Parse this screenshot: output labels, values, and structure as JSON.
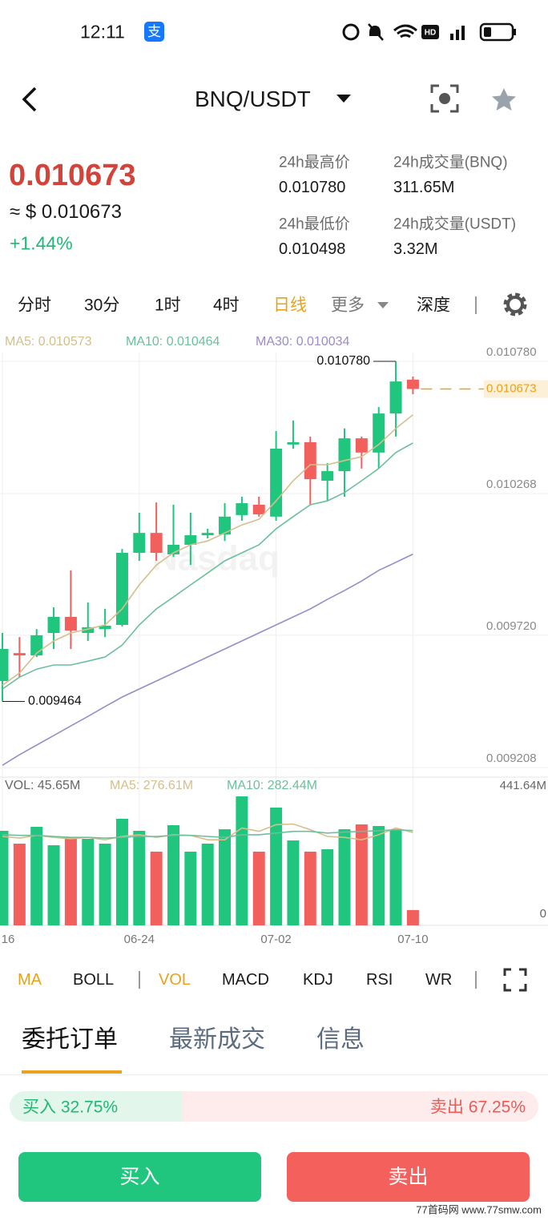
{
  "status_bar": {
    "time": "12:11",
    "app_badge": "支"
  },
  "header": {
    "title": "BNQ/USDT"
  },
  "ticker": {
    "price": "0.010673",
    "usd_price": "≈ $ 0.010673",
    "change": "+1.44%"
  },
  "stats": [
    {
      "label": "24h最高价",
      "value": "0.010780"
    },
    {
      "label": "24h成交量(BNQ)",
      "value": "311.65M"
    },
    {
      "label": "24h最低价",
      "value": "0.010498"
    },
    {
      "label": "24h成交量(USDT)",
      "value": "3.32M"
    }
  ],
  "intervals": {
    "items": [
      "分时",
      "30分",
      "1时",
      "4时",
      "日线",
      "更多",
      "深度"
    ],
    "active": 4
  },
  "chart_data": [
    {
      "type": "candlestick",
      "watermark": "Nasdaq",
      "categories": [
        "16",
        null,
        null,
        null,
        null,
        null,
        null,
        null,
        "06-24",
        null,
        null,
        null,
        null,
        null,
        null,
        null,
        "07-02",
        null,
        null,
        null,
        null,
        null,
        null,
        null,
        "07-10"
      ],
      "open": [
        0.009543,
        0.009651,
        0.009642,
        0.009729,
        0.009791,
        0.009729,
        0.009744,
        0.00976,
        0.010039,
        0.010116,
        0.010033,
        0.01007,
        0.010107,
        0.01011,
        0.010185,
        0.010225,
        0.010179,
        0.010458,
        0.010467,
        0.010318,
        0.010355,
        0.010482,
        0.010427,
        0.010578,
        0.010709
      ],
      "high": [
        0.009729,
        0.009713,
        0.009744,
        0.009828,
        0.009971,
        0.009847,
        0.009822,
        0.010054,
        0.010194,
        0.010234,
        0.010225,
        0.010194,
        0.010132,
        0.010231,
        0.010256,
        0.010256,
        0.01051,
        0.010551,
        0.010489,
        0.010386,
        0.01052,
        0.010489,
        0.010603,
        0.01078,
        0.010721
      ],
      "low": [
        0.009464,
        0.009558,
        0.009636,
        0.009667,
        0.009667,
        0.009698,
        0.009713,
        0.009754,
        0.010008,
        0.010008,
        0.010023,
        0.009992,
        0.010095,
        0.010085,
        0.010163,
        0.010179,
        0.010163,
        0.010442,
        0.010225,
        0.01024,
        0.010256,
        0.010365,
        0.010365,
        0.010489,
        0.010653
      ],
      "close": [
        0.009667,
        0.009642,
        0.00972,
        0.009791,
        0.009738,
        0.009751,
        0.009757,
        0.010039,
        0.010116,
        0.010039,
        0.01007,
        0.010107,
        0.010116,
        0.010179,
        0.010231,
        0.010188,
        0.010442,
        0.010467,
        0.010324,
        0.010355,
        0.010482,
        0.010427,
        0.010578,
        0.010702,
        0.010673
      ],
      "up_color": "#20c67e",
      "down_color": "#f1605d",
      "series": [
        {
          "name": "MA5: 0.010573",
          "color": "#d4bf8c",
          "values": [
            0.009527,
            0.009574,
            0.009651,
            0.009698,
            0.009729,
            0.009744,
            0.00976,
            0.009822,
            0.009915,
            0.009992,
            0.010039,
            0.01007,
            0.010085,
            0.010116,
            0.010147,
            0.010169,
            0.01024,
            0.010318,
            0.01038,
            0.01038,
            0.010396,
            0.010411,
            0.010458,
            0.01052,
            0.010573
          ]
        },
        {
          "name": "MA10: 0.010464",
          "color": "#6cbf9b",
          "values": [
            0.009512,
            0.009558,
            0.009589,
            0.009605,
            0.009605,
            0.00962,
            0.009636,
            0.009682,
            0.00976,
            0.009822,
            0.009868,
            0.009915,
            0.009961,
            0.010008,
            0.010039,
            0.01007,
            0.010132,
            0.010179,
            0.010225,
            0.01024,
            0.010272,
            0.010318,
            0.010365,
            0.010427,
            0.010464
          ]
        },
        {
          "name": "MA30: 0.010034",
          "color": "#9a8cc8",
          "values": [
            0.009217,
            0.009258,
            0.009295,
            0.009332,
            0.009369,
            0.009406,
            0.009444,
            0.009481,
            0.009512,
            0.009543,
            0.009574,
            0.009605,
            0.009636,
            0.009667,
            0.009698,
            0.009729,
            0.00976,
            0.009791,
            0.009822,
            0.009859,
            0.009893,
            0.00993,
            0.009971,
            0.010002,
            0.010034
          ]
        }
      ],
      "ylim": [
        0.009171,
        0.010814
      ],
      "yticks": [
        {
          "value": 0.01078,
          "label": "0.010780"
        },
        {
          "value": 0.010268,
          "label": "0.010268"
        },
        {
          "value": 0.00972,
          "label": "0.009720"
        },
        {
          "value": 0.009208,
          "label": "0.009208"
        }
      ],
      "high_label": "0.010780",
      "low_label": "0.009464",
      "last_price_label": "0.010673",
      "grid": true
    },
    {
      "type": "bar",
      "legend": "VOL: 45.65M",
      "values": [
        281.7,
        243.5,
        293.6,
        238.7,
        262.6,
        257.8,
        243.5,
        317.5,
        281.7,
        219.6,
        298.4,
        219.6,
        243.5,
        286.4,
        384.3,
        219.6,
        350.9,
        253.0,
        219.6,
        226.8,
        286.4,
        300.8,
        296.0,
        284.1,
        45.65
      ],
      "series": [
        {
          "name": "MA5: 276.61M",
          "color": "#d4bf8c",
          "values": [
            265,
            260,
            268,
            262,
            258,
            262,
            255,
            265,
            270,
            262,
            270,
            268,
            255,
            255,
            290,
            280,
            300,
            302,
            285,
            265,
            262,
            255,
            270,
            290,
            276.61
          ]
        },
        {
          "name": "MA10: 282.44M",
          "color": "#6cbf9b",
          "values": [
            270,
            268,
            268,
            265,
            262,
            262,
            260,
            262,
            265,
            265,
            268,
            268,
            265,
            262,
            270,
            270,
            275,
            280,
            280,
            275,
            278,
            280,
            282,
            285,
            282.44
          ]
        }
      ],
      "ylim": [
        0,
        441.64
      ],
      "yticks": [
        {
          "value": 441.64,
          "label": "441.64M"
        },
        0
      ]
    }
  ],
  "indicators": {
    "items": [
      "MA",
      "BOLL",
      "VOL",
      "MACD",
      "KDJ",
      "RSI",
      "WR"
    ],
    "active": [
      0,
      2
    ]
  },
  "order_tabs": {
    "items": [
      "委托订单",
      "最新成交",
      "信息"
    ],
    "active": 0
  },
  "ratio": {
    "buy_label": "买入",
    "buy": {
      "value": 32.75,
      "label": "32.75%"
    },
    "sell_label": "卖出",
    "sell": {
      "value": 67.25,
      "label": "67.25%"
    }
  },
  "buttons": {
    "buy": "买入",
    "sell": "卖出"
  },
  "watermark": "77首码网 www.77smw.com"
}
